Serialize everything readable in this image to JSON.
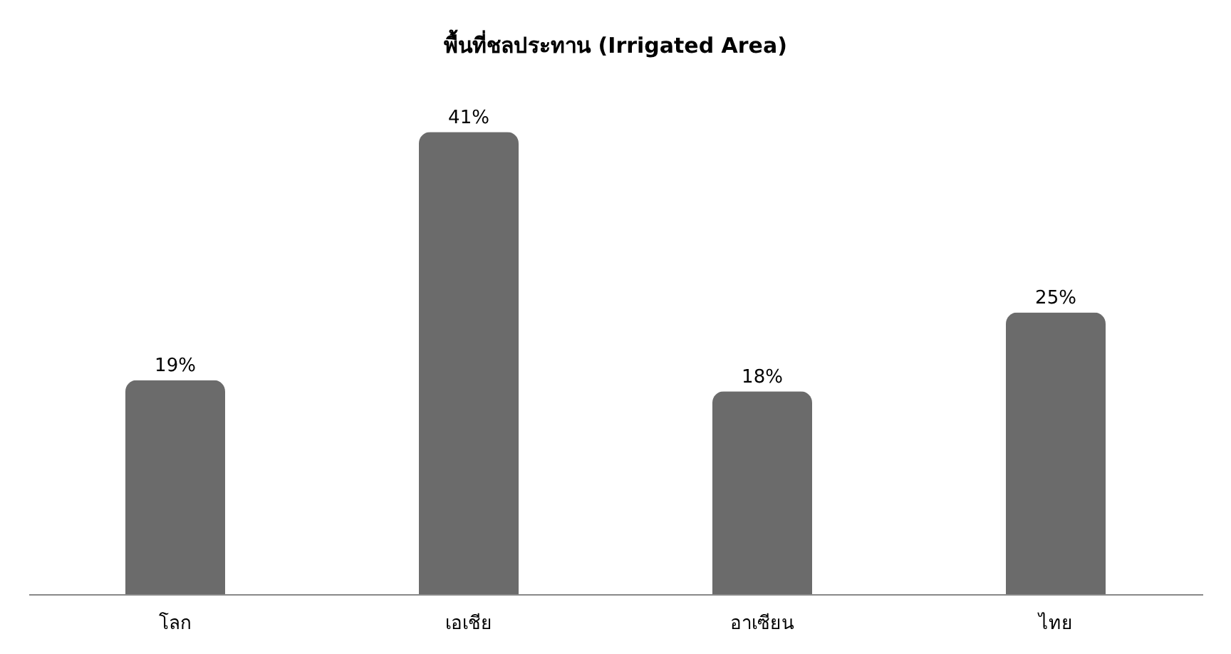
{
  "chart_data": {
    "type": "bar",
    "title": "พื้นที่ชลประทาน (Irrigated Area)",
    "categories": [
      "โลก",
      "เอเชีย",
      "อาเซียน",
      "ไทย"
    ],
    "values": [
      19,
      41,
      18,
      25
    ],
    "value_labels": [
      "19%",
      "41%",
      "18%",
      "25%"
    ],
    "color": "#6b6b6b"
  }
}
